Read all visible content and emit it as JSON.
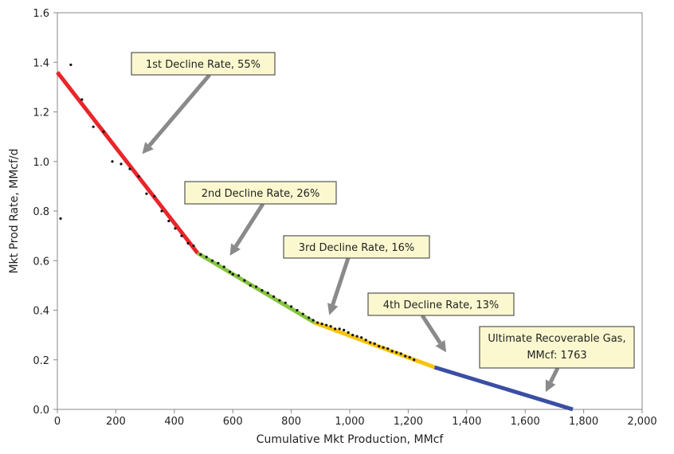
{
  "chart_data": {
    "type": "scatter",
    "title": "",
    "xlabel": "Cumulative Mkt Production, MMcf",
    "ylabel": "Mkt Prod Rate, MMcf/d",
    "xlim": [
      0,
      2000
    ],
    "ylim": [
      0,
      1.6
    ],
    "xticks": [
      "0",
      "200",
      "400",
      "600",
      "800",
      "1,000",
      "1,200",
      "1,400",
      "1,600",
      "1,800",
      "2,000"
    ],
    "yticks": [
      "0.0",
      "0.2",
      "0.4",
      "0.6",
      "0.8",
      "1.0",
      "1.2",
      "1.4",
      "1.6"
    ],
    "grid": false,
    "points": [
      [
        11,
        0.77
      ],
      [
        46,
        1.39
      ],
      [
        84,
        1.25
      ],
      [
        123,
        1.14
      ],
      [
        158,
        1.12
      ],
      [
        188,
        1.0
      ],
      [
        218,
        0.99
      ],
      [
        248,
        0.97
      ],
      [
        278,
        0.94
      ],
      [
        305,
        0.87
      ],
      [
        332,
        0.86
      ],
      [
        357,
        0.8
      ],
      [
        381,
        0.76
      ],
      [
        403,
        0.73
      ],
      [
        425,
        0.7
      ],
      [
        447,
        0.67
      ],
      [
        466,
        0.66
      ],
      [
        490,
        0.625
      ],
      [
        510,
        0.615
      ],
      [
        530,
        0.6
      ],
      [
        550,
        0.59
      ],
      [
        570,
        0.575
      ],
      [
        590,
        0.555
      ],
      [
        600,
        0.545
      ],
      [
        620,
        0.54
      ],
      [
        640,
        0.52
      ],
      [
        660,
        0.5
      ],
      [
        680,
        0.495
      ],
      [
        700,
        0.48
      ],
      [
        720,
        0.47
      ],
      [
        740,
        0.455
      ],
      [
        760,
        0.44
      ],
      [
        780,
        0.43
      ],
      [
        800,
        0.415
      ],
      [
        820,
        0.4
      ],
      [
        840,
        0.385
      ],
      [
        860,
        0.37
      ],
      [
        875,
        0.36
      ],
      [
        890,
        0.35
      ],
      [
        905,
        0.345
      ],
      [
        920,
        0.34
      ],
      [
        935,
        0.335
      ],
      [
        950,
        0.325
      ],
      [
        965,
        0.325
      ],
      [
        980,
        0.32
      ],
      [
        995,
        0.31
      ],
      [
        1010,
        0.3
      ],
      [
        1025,
        0.295
      ],
      [
        1040,
        0.29
      ],
      [
        1055,
        0.28
      ],
      [
        1070,
        0.27
      ],
      [
        1085,
        0.265
      ],
      [
        1100,
        0.255
      ],
      [
        1115,
        0.25
      ],
      [
        1130,
        0.245
      ],
      [
        1145,
        0.235
      ],
      [
        1160,
        0.23
      ],
      [
        1175,
        0.225
      ],
      [
        1190,
        0.215
      ],
      [
        1205,
        0.21
      ],
      [
        1220,
        0.2
      ]
    ],
    "segments": [
      {
        "color": "#e8262a",
        "from": [
          0,
          1.36
        ],
        "to": [
          480,
          0.63
        ]
      },
      {
        "color": "#86c440",
        "from": [
          480,
          0.63
        ],
        "to": [
          880,
          0.35
        ]
      },
      {
        "color": "#f8c30a",
        "from": [
          880,
          0.35
        ],
        "to": [
          1290,
          0.17
        ]
      },
      {
        "color": "#3a4fa3",
        "from": [
          1290,
          0.17
        ],
        "to": [
          1763,
          0
        ]
      }
    ],
    "annotations": [
      {
        "lines": [
          "1st Decline Rate, 55%"
        ],
        "target": [
          290,
          1.03
        ]
      },
      {
        "lines": [
          "2nd Decline Rate, 26%"
        ],
        "target": [
          590,
          0.62
        ]
      },
      {
        "lines": [
          "3rd Decline Rate, 16%"
        ],
        "target": [
          930,
          0.38
        ]
      },
      {
        "lines": [
          "4th Decline Rate, 13%"
        ],
        "target": [
          1330,
          0.23
        ]
      },
      {
        "lines": [
          "Ultimate Recoverable Gas,",
          "MMcf: 1763"
        ],
        "target": [
          1670,
          0.07
        ]
      }
    ]
  }
}
